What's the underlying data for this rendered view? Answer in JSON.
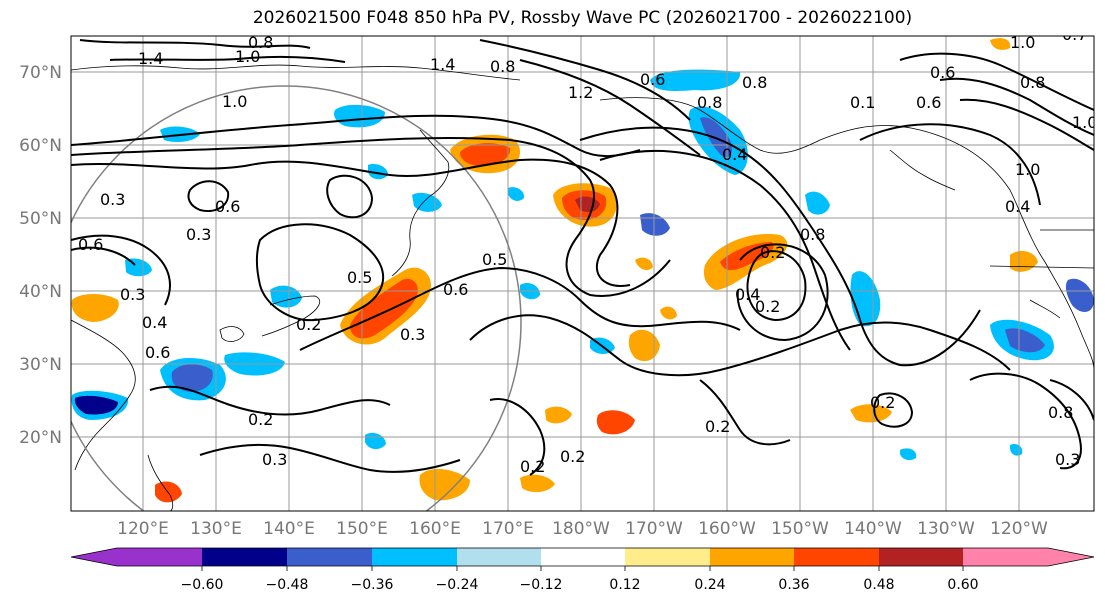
{
  "title": "2026021500 F048 850 hPa PV, Rossby Wave PC (2026021700 - 2026022100)",
  "colors": {
    "neg_060": "#9932cc",
    "neg_048": "#00008b",
    "neg_036": "#3a5fcd",
    "neg_024": "#00bfff",
    "neg_012": "#b2dfee",
    "zero": "#ffffff",
    "pos_012": "#ffec8b",
    "pos_024": "#ffa500",
    "pos_036": "#ff4500",
    "pos_048": "#b22222",
    "pos_060": "#ff82ab",
    "contour": "#000000",
    "coast": "#000000",
    "grid": "#999999",
    "circle": "#808080"
  },
  "lat_labels": [
    "70°N",
    "60°N",
    "50°N",
    "40°N",
    "30°N",
    "20°N"
  ],
  "lon_labels": [
    "120°E",
    "130°E",
    "140°E",
    "150°E",
    "160°E",
    "170°E",
    "180°W",
    "170°W",
    "160°W",
    "150°W",
    "140°W",
    "130°W",
    "120°W"
  ],
  "colorbar": {
    "ticks": [
      "−0.60",
      "−0.48",
      "−0.36",
      "−0.24",
      "−0.12",
      "0.12",
      "0.24",
      "0.36",
      "0.48",
      "0.60"
    ]
  },
  "contour_labels": [
    "1.4",
    "0.8",
    "1.0",
    "1.4",
    "0.8",
    "1.0",
    "1.0",
    "0.8",
    "0.6",
    "0.6",
    "0.3",
    "0.3",
    "0.6",
    "0.6",
    "0.3",
    "0.5",
    "0.6",
    "0.5",
    "0.4",
    "0.2",
    "0.3",
    "0.2",
    "0.3",
    "0.2",
    "0.6",
    "0.8",
    "0.4",
    "0.2",
    "0.8",
    "0.4",
    "0.2",
    "0.1",
    "0.2",
    "0.6",
    "0.8",
    "0.7",
    "1.0",
    "0.4",
    "0.3",
    "0.8",
    "1.2",
    "1.0",
    "0.2",
    "0.2"
  ]
}
